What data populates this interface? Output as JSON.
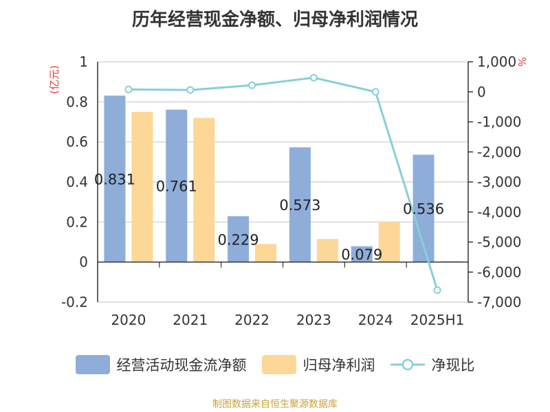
{
  "title": "历年经营现金净额、归母净利润情况",
  "source_note": "制图数据来自恒生聚源数据库",
  "colors": {
    "cash_bar": "#8fadd9",
    "profit_bar": "#fdd796",
    "ratio_line": "#86d0d6",
    "axis_unit_red": "#e23b3b",
    "source_gold": "#c9a13b"
  },
  "chart_data": {
    "type": "bar",
    "title": "历年经营现金净额、归母净利润情况",
    "categories": [
      "2020",
      "2021",
      "2022",
      "2023",
      "2024",
      "2025H1"
    ],
    "series": [
      {
        "name": "经营活动现金流净额",
        "type": "bar",
        "axis": "left",
        "values": [
          0.831,
          0.761,
          0.229,
          0.573,
          0.079,
          0.536
        ],
        "data_labels": [
          "0.831",
          "0.761",
          "0.229",
          "0.573",
          "0.079",
          "0.536"
        ]
      },
      {
        "name": "归母净利润",
        "type": "bar",
        "axis": "left",
        "values": [
          0.75,
          0.72,
          0.09,
          0.115,
          0.2,
          0.005
        ]
      },
      {
        "name": "净现比",
        "type": "line",
        "axis": "right",
        "values": [
          80,
          60,
          220,
          470,
          0,
          -6600
        ]
      }
    ],
    "left_axis": {
      "unit": "(亿元)",
      "ylim": [
        -0.2,
        1
      ],
      "ticks": [
        1,
        0.8,
        0.6,
        0.4,
        0.2,
        0,
        -0.2
      ],
      "tick_labels": [
        "1",
        "0.8",
        "0.6",
        "0.4",
        "0.2",
        "0",
        "-0.2"
      ]
    },
    "right_axis": {
      "unit": "%",
      "ylim": [
        -7000,
        1000
      ],
      "ticks": [
        1000,
        0,
        -1000,
        -2000,
        -3000,
        -4000,
        -5000,
        -6000,
        -7000
      ],
      "tick_labels": [
        "1,000",
        "0",
        "-1,000",
        "-2,000",
        "-3,000",
        "-4,000",
        "-5,000",
        "-6,000",
        "-7,000"
      ]
    },
    "grid": true,
    "legend_position": "bottom"
  }
}
